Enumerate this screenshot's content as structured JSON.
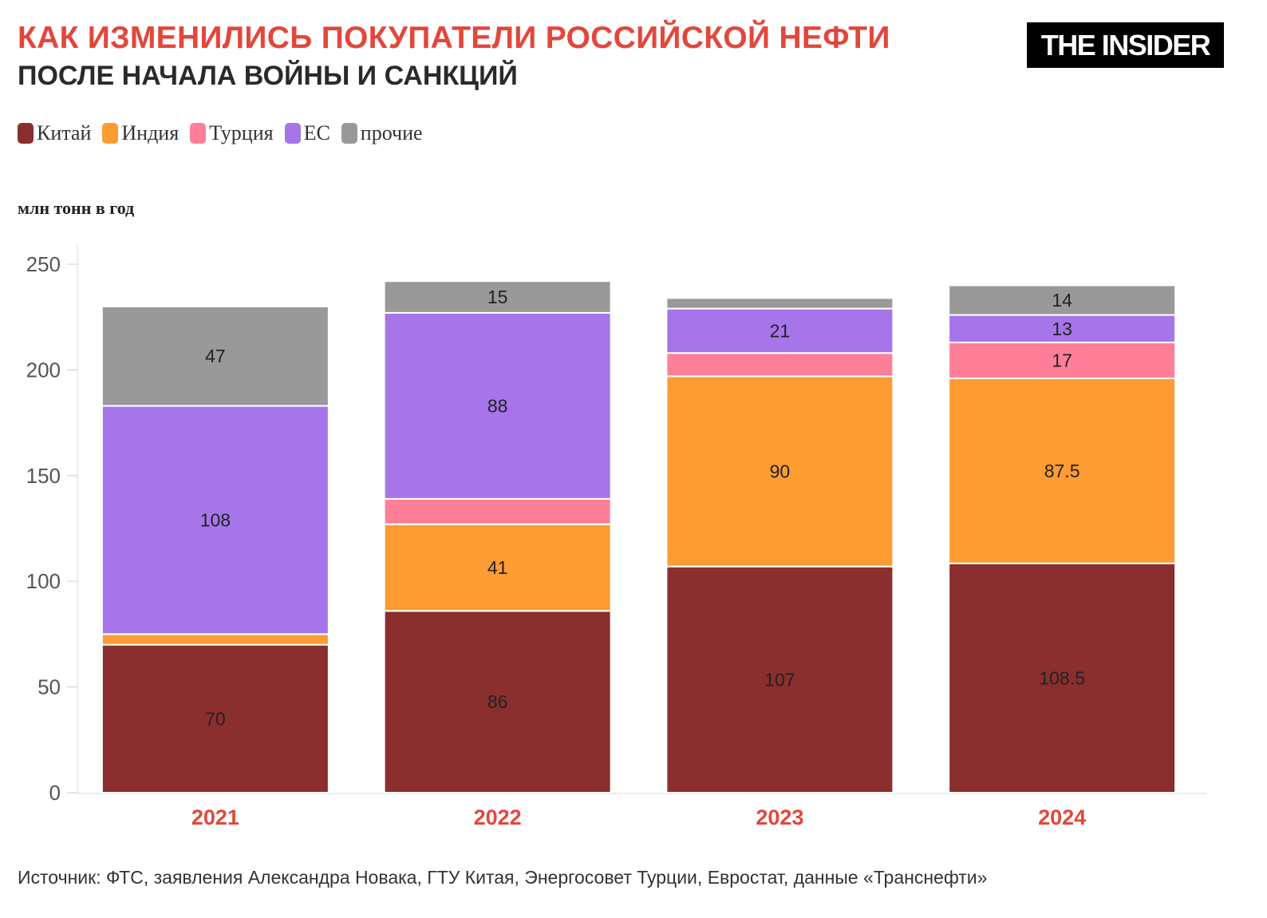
{
  "title": "КАК ИЗМЕНИЛИСЬ ПОКУПАТЕЛИ РОССИЙСКОЙ НЕФТИ",
  "subtitle": "ПОСЛЕ НАЧАЛА ВОЙНЫ И САНКЦИЙ",
  "logo": "THE INSIDER",
  "source": "Источник: ФТС, заявления Александра Новака, ГТУ Китая, Энергосовет Турции, Евростат, данные «Транснефти»",
  "chart_data": {
    "type": "bar",
    "stacked": true,
    "ylabel": "млн тонн в год",
    "ylim": [
      0,
      250
    ],
    "yticks": [
      0,
      50,
      100,
      150,
      200,
      250
    ],
    "categories": [
      "2021",
      "2022",
      "2023",
      "2024"
    ],
    "legend_position": "top-left",
    "series": [
      {
        "name": "Китай",
        "color": "#8b2e2e",
        "values": [
          70,
          86,
          107,
          108.5
        ],
        "labels": [
          "70",
          "86",
          "107",
          "108.5"
        ]
      },
      {
        "name": "Индия",
        "color": "#fd9c33",
        "values": [
          5,
          41,
          90,
          87.5
        ],
        "labels": [
          "",
          "41",
          "90",
          "87.5"
        ]
      },
      {
        "name": "Турция",
        "color": "#ff7f98",
        "values": [
          0,
          12,
          11,
          17
        ],
        "labels": [
          "",
          "",
          "",
          "17"
        ]
      },
      {
        "name": "ЕС",
        "color": "#a675e9",
        "values": [
          108,
          88,
          21,
          13
        ],
        "labels": [
          "108",
          "88",
          "21",
          "13"
        ]
      },
      {
        "name": "прочие",
        "color": "#999999",
        "values": [
          47,
          15,
          5,
          14
        ],
        "labels": [
          "47",
          "15",
          "",
          "14"
        ]
      }
    ]
  }
}
